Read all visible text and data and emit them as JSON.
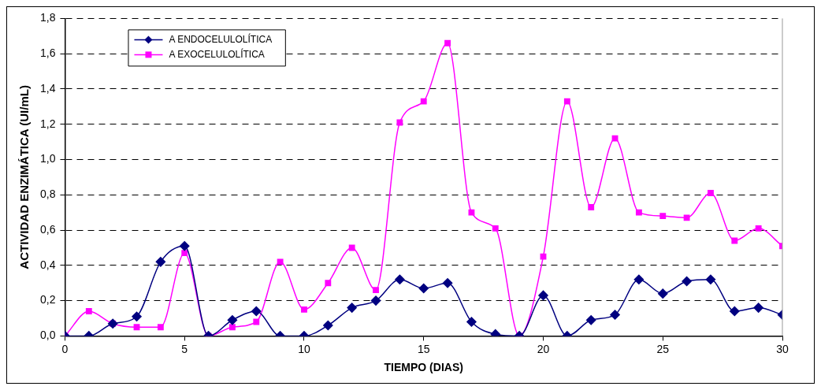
{
  "chart_data": {
    "type": "line",
    "xlabel": "TIEMPO (DIAS)",
    "ylabel": "ACTIVIDAD ENZIMÁTICA (UI/mL)",
    "x": [
      0,
      1,
      2,
      3,
      4,
      5,
      6,
      7,
      8,
      9,
      10,
      11,
      12,
      13,
      14,
      15,
      16,
      17,
      18,
      19,
      20,
      21,
      22,
      23,
      24,
      25,
      26,
      27,
      28,
      29,
      30
    ],
    "series": [
      {
        "name": "A ENDOCELULOLÍTICA",
        "color": "#000080",
        "marker": "diamond",
        "values": [
          0,
          0,
          0.07,
          0.11,
          0.42,
          0.51,
          0,
          0.09,
          0.14,
          0,
          0,
          0.06,
          0.16,
          0.2,
          0.32,
          0.27,
          0.3,
          0.08,
          0.01,
          0,
          0.23,
          0,
          0.09,
          0.12,
          0.32,
          0.24,
          0.31,
          0.32,
          0.14,
          0.16,
          0.12
        ]
      },
      {
        "name": "A EXOCELULOLÍTICA",
        "color": "#ff00ff",
        "marker": "square",
        "values": [
          0,
          0.14,
          0.07,
          0.05,
          0.05,
          0.47,
          0,
          0.05,
          0.08,
          0.42,
          0.15,
          0.3,
          0.5,
          0.26,
          1.21,
          1.33,
          1.66,
          0.7,
          0.61,
          0,
          0.45,
          1.33,
          0.73,
          1.12,
          0.7,
          0.68,
          0.67,
          0.81,
          0.54,
          0.61,
          0.51
        ]
      }
    ],
    "xlim": [
      0,
      30
    ],
    "xticks": [
      0,
      5,
      10,
      15,
      20,
      25,
      30
    ],
    "ylim": [
      0,
      1.8
    ],
    "yticks": [
      {
        "value": 0,
        "label": "0,0"
      },
      {
        "value": 0.2,
        "label": "0,2"
      },
      {
        "value": 0.4,
        "label": "0,4"
      },
      {
        "value": 0.6,
        "label": "0,6"
      },
      {
        "value": 0.8,
        "label": "0,8"
      },
      {
        "value": 1,
        "label": "1,0"
      },
      {
        "value": 1.2,
        "label": "1,2"
      },
      {
        "value": 1.4,
        "label": "1,4"
      },
      {
        "value": 1.6,
        "label": "1,6"
      },
      {
        "value": 1.8,
        "label": "1,8"
      }
    ],
    "grid": "y",
    "legend": "top left"
  }
}
